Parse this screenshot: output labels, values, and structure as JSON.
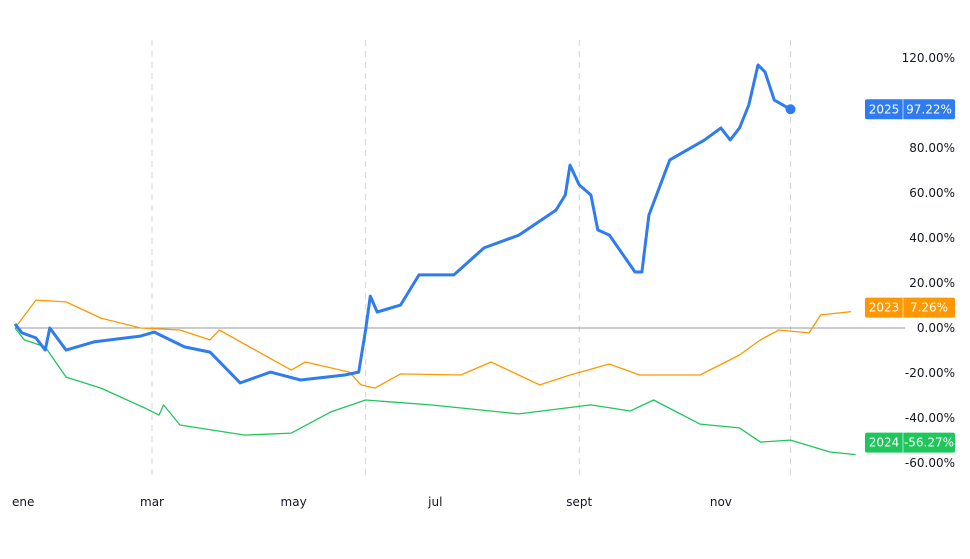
{
  "chart_data": {
    "type": "line",
    "title": "",
    "xlabel": "",
    "ylabel": "",
    "x_tick_labels": [
      "ene",
      "mar",
      "may",
      "jul",
      "sept",
      "nov"
    ],
    "x_tick_dates": [
      "01-01",
      "03-01",
      "05-01",
      "07-01",
      "09-01",
      "11-01"
    ],
    "vertical_gridlines": [
      "03-01",
      "06-01",
      "09-01",
      "12-01"
    ],
    "y_tick_labels": [
      "120.00%",
      "80.00%",
      "60.00%",
      "40.00%",
      "20.00%",
      "0.00%",
      "-20.00%",
      "-40.00%",
      "-60.00%"
    ],
    "y_ticks": [
      120,
      80,
      60,
      40,
      20,
      0,
      -20,
      -40,
      -60
    ],
    "ylim": [
      -60,
      125
    ],
    "y_unit": "%",
    "axis_position": "right",
    "zero_line": true,
    "series": [
      {
        "name": "2025",
        "color": "#2f7bf0",
        "last_label": "97.22%",
        "end_marker": true,
        "x": [
          "01-01",
          "01-04",
          "01-10",
          "01-14",
          "01-16",
          "01-23",
          "02-04",
          "02-24",
          "03-02",
          "03-15",
          "03-26",
          "04-08",
          "04-21",
          "05-04",
          "05-23",
          "05-29",
          "06-01",
          "06-03",
          "06-06",
          "06-16",
          "06-24",
          "07-09",
          "07-22",
          "08-06",
          "08-22",
          "08-26",
          "08-28",
          "09-01",
          "09-06",
          "09-09",
          "09-14",
          "09-25",
          "09-28",
          "10-01",
          "10-10",
          "10-25",
          "11-01",
          "11-05",
          "11-09",
          "11-13",
          "11-17",
          "11-20",
          "11-24",
          "12-01"
        ],
        "y": [
          1.8,
          -2.2,
          -4.4,
          -9.8,
          0,
          -9.8,
          -6.2,
          -3.6,
          -1.8,
          -8.4,
          -10.7,
          -24.4,
          -19.6,
          -23.1,
          -20.9,
          -19.6,
          -0.9,
          14.2,
          7.1,
          10.2,
          23.6,
          23.6,
          35.6,
          41.3,
          52.4,
          59.1,
          72.4,
          63.6,
          59.1,
          43.6,
          41.3,
          24.9,
          24.9,
          50.2,
          74.7,
          83.6,
          88.9,
          83.6,
          88.9,
          99.1,
          116.9,
          113.8,
          101.3,
          97.22
        ]
      },
      {
        "name": "2023",
        "color": "#ff9800",
        "last_label": "7.26%",
        "end_marker": false,
        "x": [
          "01-01",
          "01-10",
          "01-23",
          "02-07",
          "02-24",
          "03-13",
          "03-26",
          "03-30",
          "04-16",
          "04-30",
          "05-06",
          "05-25",
          "05-30",
          "06-05",
          "06-16",
          "07-12",
          "07-25",
          "08-15",
          "08-28",
          "09-14",
          "09-27",
          "10-23",
          "11-09",
          "11-18",
          "11-26",
          "12-09",
          "12-14",
          "12-27"
        ],
        "y": [
          0,
          12.4,
          11.6,
          4.4,
          0,
          -0.9,
          -5.3,
          -0.9,
          -10.7,
          -18.7,
          -15.1,
          -19.6,
          -25.3,
          -26.7,
          -20.4,
          -20.9,
          -15.1,
          -25.3,
          -20.9,
          -16,
          -20.9,
          -20.9,
          -12,
          -5.3,
          -0.9,
          -2.2,
          5.8,
          7.26
        ]
      },
      {
        "name": "2024",
        "color": "#1fc65c",
        "last_label": "-56.27%",
        "end_marker": false,
        "x": [
          "01-01",
          "01-05",
          "01-14",
          "01-23",
          "02-07",
          "02-26",
          "03-04",
          "03-06",
          "03-13",
          "04-10",
          "04-30",
          "05-17",
          "06-01",
          "06-29",
          "08-06",
          "09-06",
          "09-23",
          "10-03",
          "10-23",
          "11-09",
          "11-18",
          "12-01",
          "12-18",
          "12-29"
        ],
        "y": [
          0,
          -5.3,
          -8.4,
          -21.8,
          -26.7,
          -35.6,
          -38.7,
          -34.2,
          -43.1,
          -47.6,
          -46.7,
          -37.3,
          -32,
          -34.2,
          -38.2,
          -34.2,
          -36.9,
          -32,
          -42.7,
          -44.4,
          -50.7,
          -49.8,
          -55.1,
          -56.27
        ]
      }
    ]
  }
}
